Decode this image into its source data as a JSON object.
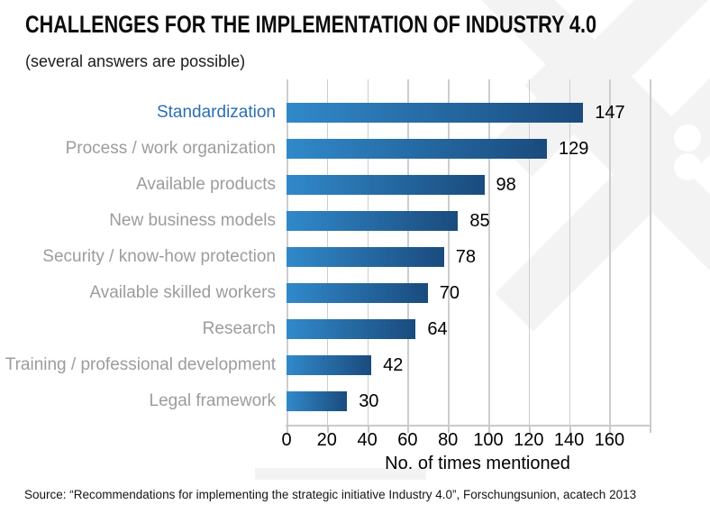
{
  "chart_data": {
    "type": "bar",
    "orientation": "horizontal",
    "title": "CHALLENGES FOR THE IMPLEMENTATION OF INDUSTRY 4.0",
    "subtitle": "(several answers are possible)",
    "categories": [
      "Standardization",
      "Process / work organization",
      "Available products",
      "New business models",
      "Security / know-how protection",
      "Available skilled workers",
      "Research",
      "Training / professional development",
      "Legal framework"
    ],
    "values": [
      147,
      129,
      98,
      85,
      78,
      70,
      64,
      42,
      30
    ],
    "xlabel": "No. of times mentioned",
    "xticks": [
      0,
      20,
      40,
      60,
      80,
      100,
      120,
      140,
      160
    ],
    "xlim": [
      0,
      180
    ],
    "grid": true,
    "legend": "none",
    "highlighted_category": "Standardization",
    "colors": {
      "bar_gradient_start": "#3189ca",
      "bar_gradient_end": "#1a4b7d",
      "highlight_label": "#2b6fb3",
      "category_label": "#9c9c9c",
      "value_label": "#000000",
      "gridline": "#cdcdcd",
      "tick": "#c9c9c9"
    }
  },
  "footer": {
    "source": "Source: “Recommendations for implementing the strategic initiative Industry 4.0”, Forschungsunion, acatech 2013"
  }
}
